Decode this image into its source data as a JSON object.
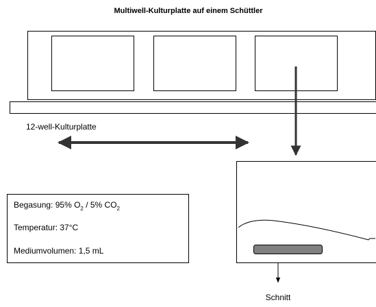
{
  "title": "Multiwell-Kulturplatte auf einem Schüttler",
  "plate_label": "12-well-Kulturplatte",
  "info_box": {
    "lines": [
      [
        {
          "text": "Begasung: 95% O"
        },
        {
          "sub": "2"
        },
        {
          "text": " / 5% CO"
        },
        {
          "sub": "2"
        }
      ],
      [
        {
          "text": "Temperatur: 37°C"
        }
      ],
      [
        {
          "text": "Mediumvolumen: 1,5 mL"
        }
      ]
    ]
  },
  "section_label": "Schnitt"
}
